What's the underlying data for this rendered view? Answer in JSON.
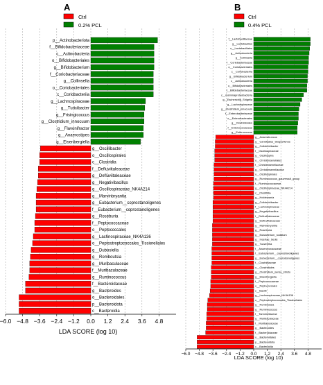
{
  "panels": [
    {
      "letter": "A",
      "legend": [
        {
          "label": "Ctrl",
          "color": "#ff0000"
        },
        {
          "label": "0.2% PCL",
          "color": "#008000"
        }
      ]
    },
    {
      "letter": "B",
      "legend": [
        {
          "label": "Ctrl",
          "color": "#ff0000"
        },
        {
          "label": "0.4% PCL",
          "color": "#008000"
        }
      ]
    }
  ],
  "chart_data": [
    {
      "type": "bar",
      "orientation": "horizontal",
      "xlabel": "LDA SCORE (log 10)",
      "xlim": [
        -6.0,
        6.0
      ],
      "xticks": [
        "−6.0",
        "−4.8",
        "−3.6",
        "−2.4",
        "−1.2",
        "0.0",
        "1.2",
        "2.4",
        "3.6",
        "4.8"
      ],
      "grid": true,
      "legend_position": "top-left",
      "colors": {
        "Ctrl": "#ff0000",
        "0.2% PCL": "#008000"
      },
      "bars": [
        {
          "label": "p__Actinobacteriota",
          "value": 4.7,
          "group": "0.2% PCL"
        },
        {
          "label": "f__Bifidobacteriaceae",
          "value": 4.45,
          "group": "0.2% PCL"
        },
        {
          "label": "c__Actinobacteria",
          "value": 4.45,
          "group": "0.2% PCL"
        },
        {
          "label": "o__Bifidobacteriales",
          "value": 4.45,
          "group": "0.2% PCL"
        },
        {
          "label": "g__Bifidobacterium",
          "value": 4.45,
          "group": "0.2% PCL"
        },
        {
          "label": "f__Coriobacteriaceae",
          "value": 4.4,
          "group": "0.2% PCL"
        },
        {
          "label": "g__Collinsella",
          "value": 4.4,
          "group": "0.2% PCL"
        },
        {
          "label": "o__Coriobacteriales",
          "value": 4.4,
          "group": "0.2% PCL"
        },
        {
          "label": "c__Coriobacteriia",
          "value": 4.4,
          "group": "0.2% PCL"
        },
        {
          "label": "g__Lachnospiraceae",
          "value": 3.85,
          "group": "0.2% PCL"
        },
        {
          "label": "g__Turicibacter",
          "value": 3.8,
          "group": "0.2% PCL"
        },
        {
          "label": "g__Frisingicoccus",
          "value": 3.75,
          "group": "0.2% PCL"
        },
        {
          "label": "g__Clostridium_innocuum",
          "value": 3.75,
          "group": "0.2% PCL"
        },
        {
          "label": "g__Flavonifractor",
          "value": 3.7,
          "group": "0.2% PCL"
        },
        {
          "label": "g__Anaerostipes",
          "value": 3.7,
          "group": "0.2% PCL"
        },
        {
          "label": "g__Eisenbergiella",
          "value": 3.5,
          "group": "0.2% PCL"
        },
        {
          "label": "g__Oscillibacter",
          "value": -3.55,
          "group": "Ctrl"
        },
        {
          "label": "o__Oscillospirales",
          "value": -3.6,
          "group": "Ctrl"
        },
        {
          "label": "c__Clostridia",
          "value": -3.6,
          "group": "Ctrl"
        },
        {
          "label": "f__Defluviitaleaceae",
          "value": -3.7,
          "group": "Ctrl"
        },
        {
          "label": "g__Defluviitaleaceae",
          "value": -3.7,
          "group": "Ctrl"
        },
        {
          "label": "g__Negativibacillus",
          "value": -3.75,
          "group": "Ctrl"
        },
        {
          "label": "g__Oscillospiraceae_NK4A214",
          "value": -3.8,
          "group": "Ctrl"
        },
        {
          "label": "g__Marvinbryantia",
          "value": -3.85,
          "group": "Ctrl"
        },
        {
          "label": "g__Eubacterium__coprostanoligenes",
          "value": -3.85,
          "group": "Ctrl"
        },
        {
          "label": "f__Eubacterium__coprostanoligenes",
          "value": -3.85,
          "group": "Ctrl"
        },
        {
          "label": "g__Roseburia",
          "value": -3.9,
          "group": "Ctrl"
        },
        {
          "label": "f__Peptococcaceae",
          "value": -3.95,
          "group": "Ctrl"
        },
        {
          "label": "o__Peptococcales",
          "value": -3.95,
          "group": "Ctrl"
        },
        {
          "label": "g__Lachnospiraceae_NK4A136",
          "value": -4.05,
          "group": "Ctrl"
        },
        {
          "label": "o__Peptostreptococcales_Tissierellales",
          "value": -4.1,
          "group": "Ctrl"
        },
        {
          "label": "g__Dubosiella",
          "value": -4.2,
          "group": "Ctrl"
        },
        {
          "label": "g__Romboutsia",
          "value": -4.25,
          "group": "Ctrl"
        },
        {
          "label": "g__Muribaculaceae",
          "value": -4.3,
          "group": "Ctrl"
        },
        {
          "label": "f__Muribaculaceae",
          "value": -4.3,
          "group": "Ctrl"
        },
        {
          "label": "g__Ruminococcus",
          "value": -4.35,
          "group": "Ctrl"
        },
        {
          "label": "f__Bacteroidaceae",
          "value": -4.6,
          "group": "Ctrl"
        },
        {
          "label": "g__Bacteroides",
          "value": -4.6,
          "group": "Ctrl"
        },
        {
          "label": "o__Bacteroidales",
          "value": -5.05,
          "group": "Ctrl"
        },
        {
          "label": "p__Bacteroidota",
          "value": -5.05,
          "group": "Ctrl"
        },
        {
          "label": "c__Bacteroidia",
          "value": -5.05,
          "group": "Ctrl"
        }
      ]
    },
    {
      "type": "bar",
      "orientation": "horizontal",
      "xlabel": "LDA SCORE (log 10)",
      "xlim": [
        -6.0,
        6.0
      ],
      "xticks": [
        "−6.0",
        "−4.8",
        "−3.6",
        "−2.4",
        "−1.2",
        "0.0",
        "1.2",
        "2.4",
        "3.6",
        "4.8"
      ],
      "grid": true,
      "legend_position": "top-left",
      "colors": {
        "Ctrl": "#ff0000",
        "0.4% PCL": "#008000"
      },
      "bars": [
        {
          "label": "f__Lactobacillaceae",
          "value": 5.0,
          "group": "0.4% PCL"
        },
        {
          "label": "g__Lactobacillus",
          "value": 5.0,
          "group": "0.4% PCL"
        },
        {
          "label": "o__Lactobacillales",
          "value": 4.95,
          "group": "0.4% PCL"
        },
        {
          "label": "g__Actinobacteria",
          "value": 4.9,
          "group": "0.4% PCL"
        },
        {
          "label": "g__Collinsella",
          "value": 4.85,
          "group": "0.4% PCL"
        },
        {
          "label": "f__Coriobacteriaceae",
          "value": 4.85,
          "group": "0.4% PCL"
        },
        {
          "label": "o__Coriobacteriales",
          "value": 4.8,
          "group": "0.4% PCL"
        },
        {
          "label": "c__Coriobacteriia",
          "value": 4.8,
          "group": "0.4% PCL"
        },
        {
          "label": "g__Bifidobacterium",
          "value": 4.75,
          "group": "0.4% PCL"
        },
        {
          "label": "c__Actinobacteria",
          "value": 4.75,
          "group": "0.4% PCL"
        },
        {
          "label": "o__Bifidobacteriales",
          "value": 4.7,
          "group": "0.4% PCL"
        },
        {
          "label": "f__Bifidobacteriaceae",
          "value": 4.7,
          "group": "0.4% PCL"
        },
        {
          "label": "c__Gammaproteobacteria",
          "value": 4.4,
          "group": "0.4% PCL"
        },
        {
          "label": "g__Escherichia_Shigella",
          "value": 4.25,
          "group": "0.4% PCL"
        },
        {
          "label": "g__Lachnospiraceae",
          "value": 4.1,
          "group": "0.4% PCL"
        },
        {
          "label": "g__Clostridium_innocuum",
          "value": 4.0,
          "group": "0.4% PCL"
        },
        {
          "label": "f__Enterobacteriaceae",
          "value": 3.95,
          "group": "0.4% PCL"
        },
        {
          "label": "o__Enterobacterales",
          "value": 3.95,
          "group": "0.4% PCL"
        },
        {
          "label": "g__Clostridioides",
          "value": 3.9,
          "group": "0.4% PCL"
        },
        {
          "label": "f__Enterococcaceae",
          "value": 3.85,
          "group": "0.4% PCL"
        },
        {
          "label": "g__Enterococcus",
          "value": 3.85,
          "group": "0.4% PCL"
        },
        {
          "label": "g__Anaerotruncus",
          "value": -3.35,
          "group": "Ctrl"
        },
        {
          "label": "g__Candidatus_Stoquefichus",
          "value": -3.4,
          "group": "Ctrl"
        },
        {
          "label": "g__Colidextribacter",
          "value": -3.4,
          "group": "Ctrl"
        },
        {
          "label": "f__Oscillospiraceae",
          "value": -3.45,
          "group": "Ctrl"
        },
        {
          "label": "g__Oscillospira",
          "value": -3.45,
          "group": "Ctrl"
        },
        {
          "label": "o__Christensenellales",
          "value": -3.45,
          "group": "Ctrl"
        },
        {
          "label": "f__Christensenellaceae",
          "value": -3.5,
          "group": "Ctrl"
        },
        {
          "label": "g__Christensenellaceae",
          "value": -3.5,
          "group": "Ctrl"
        },
        {
          "label": "o__Oscillospirales",
          "value": -3.5,
          "group": "Ctrl"
        },
        {
          "label": "g__Ruminococcus_gauvreauii_group",
          "value": -3.5,
          "group": "Ctrl"
        },
        {
          "label": "f__Ruminococcaceae",
          "value": -3.55,
          "group": "Ctrl"
        },
        {
          "label": "g__Oscillospiraceae_NK4A214",
          "value": -3.55,
          "group": "Ctrl"
        },
        {
          "label": "c__Clostridia",
          "value": -3.55,
          "group": "Ctrl"
        },
        {
          "label": "g__Holdemania",
          "value": -3.55,
          "group": "Ctrl"
        },
        {
          "label": "g__Colidextribacter",
          "value": -3.6,
          "group": "Ctrl"
        },
        {
          "label": "f__Lachnospiraceae",
          "value": -3.6,
          "group": "Ctrl"
        },
        {
          "label": "g__Negativibacillus",
          "value": -3.6,
          "group": "Ctrl"
        },
        {
          "label": "f__Defluviitaleaceae",
          "value": -3.6,
          "group": "Ctrl"
        },
        {
          "label": "g__Defluviitaleaceae",
          "value": -3.6,
          "group": "Ctrl"
        },
        {
          "label": "g__Marvinbryantia",
          "value": -3.65,
          "group": "Ctrl"
        },
        {
          "label": "g__Roseburia",
          "value": -3.65,
          "group": "Ctrl"
        },
        {
          "label": "g__Eubacterium_nodatum",
          "value": -3.65,
          "group": "Ctrl"
        },
        {
          "label": "g__Incertae_Sedis",
          "value": -3.65,
          "group": "Ctrl"
        },
        {
          "label": "g__Tuzzerella",
          "value": -3.65,
          "group": "Ctrl"
        },
        {
          "label": "f__Anaerovoracaceae",
          "value": -3.7,
          "group": "Ctrl"
        },
        {
          "label": "f__Eubacterium__coprostanoligenes",
          "value": -3.7,
          "group": "Ctrl"
        },
        {
          "label": "g__Eubacterium__coprostanoligenes",
          "value": -3.7,
          "group": "Ctrl"
        },
        {
          "label": "f__Clostridiaceae",
          "value": -3.7,
          "group": "Ctrl"
        },
        {
          "label": "o__Clostridiales",
          "value": -3.75,
          "group": "Ctrl"
        },
        {
          "label": "g__Clostridium_sensu_stricto",
          "value": -3.75,
          "group": "Ctrl"
        },
        {
          "label": "g__Eisenbergiella",
          "value": -3.75,
          "group": "Ctrl"
        },
        {
          "label": "f__Peptococcaceae",
          "value": -3.8,
          "group": "Ctrl"
        },
        {
          "label": "o__Peptococcales",
          "value": -3.8,
          "group": "Ctrl"
        },
        {
          "label": "c__Bacilli",
          "value": -3.85,
          "group": "Ctrl"
        },
        {
          "label": "g__Lachnospiraceae_NK4A136",
          "value": -3.9,
          "group": "Ctrl"
        },
        {
          "label": "o__Peptostreptococcales_Tissierellales",
          "value": -4.05,
          "group": "Ctrl"
        },
        {
          "label": "g__Romboutsia",
          "value": -4.1,
          "group": "Ctrl"
        },
        {
          "label": "g__Ruminococcus",
          "value": -4.1,
          "group": "Ctrl"
        },
        {
          "label": "f__Tannerellaceae",
          "value": -4.15,
          "group": "Ctrl"
        },
        {
          "label": "g__Muribaculaceae",
          "value": -4.15,
          "group": "Ctrl"
        },
        {
          "label": "f__Muribaculaceae",
          "value": -4.2,
          "group": "Ctrl"
        },
        {
          "label": "g__Bacteroides",
          "value": -4.2,
          "group": "Ctrl"
        },
        {
          "label": "f__Bacteroidaceae",
          "value": -4.25,
          "group": "Ctrl"
        },
        {
          "label": "o__Bacteroidales",
          "value": -5.0,
          "group": "Ctrl"
        },
        {
          "label": "p__Bacteroidota",
          "value": -5.0,
          "group": "Ctrl"
        },
        {
          "label": "c__Bacteroidia",
          "value": -5.0,
          "group": "Ctrl"
        }
      ]
    }
  ]
}
